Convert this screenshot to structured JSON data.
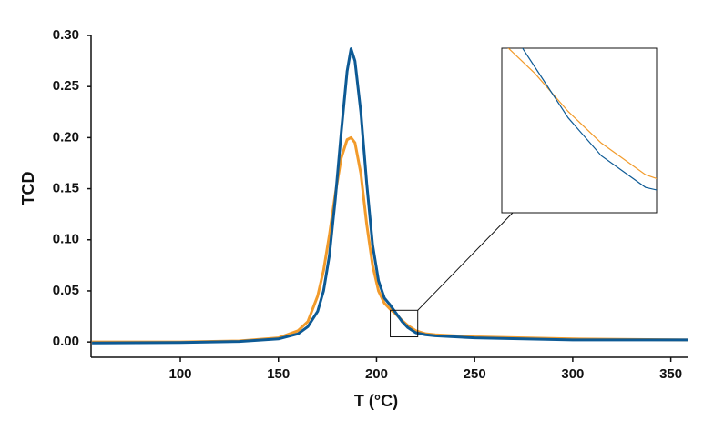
{
  "chart_data": {
    "type": "line",
    "x_label": "T (°C)",
    "y_label": "TCD",
    "x": [
      55,
      100,
      130,
      150,
      160,
      165,
      170,
      173,
      176,
      179,
      182,
      185,
      187,
      189,
      192,
      195,
      198,
      201,
      204,
      207,
      210,
      213,
      216,
      220,
      225,
      230,
      250,
      300,
      359
    ],
    "series": [
      {
        "name": "orange",
        "color": "#f29b2b",
        "values": [
          0,
          0,
          0.001,
          0.004,
          0.011,
          0.02,
          0.045,
          0.07,
          0.105,
          0.145,
          0.18,
          0.198,
          0.2,
          0.195,
          0.165,
          0.115,
          0.075,
          0.05,
          0.038,
          0.032,
          0.027,
          0.021,
          0.016,
          0.011,
          0.008,
          0.007,
          0.005,
          0.003,
          0.002
        ]
      },
      {
        "name": "blue",
        "color": "#0d5a95",
        "values": [
          -0.001,
          -0.0005,
          0.0005,
          0.003,
          0.008,
          0.015,
          0.03,
          0.05,
          0.085,
          0.14,
          0.205,
          0.265,
          0.287,
          0.275,
          0.225,
          0.155,
          0.095,
          0.06,
          0.043,
          0.036,
          0.028,
          0.02,
          0.014,
          0.009,
          0.007,
          0.006,
          0.004,
          0.002,
          0.002
        ]
      }
    ],
    "xlim": [
      54.5,
      359
    ],
    "ylim": [
      -0.015,
      0.3
    ],
    "xticks": [
      100,
      150,
      200,
      250,
      300,
      350
    ],
    "yticks": [
      {
        "value": 0,
        "label": "0.00"
      },
      {
        "value": 0.05,
        "label": "0.05"
      },
      {
        "value": 0.1,
        "label": "0.10"
      },
      {
        "value": 0.15,
        "label": "0.15"
      },
      {
        "value": 0.2,
        "label": "0.20"
      },
      {
        "value": 0.25,
        "label": "0.25"
      },
      {
        "value": 0.3,
        "label": "0.30"
      }
    ],
    "inset": {
      "xlim": [
        207,
        221
      ],
      "ylim": [
        0.005,
        0.031
      ]
    }
  }
}
